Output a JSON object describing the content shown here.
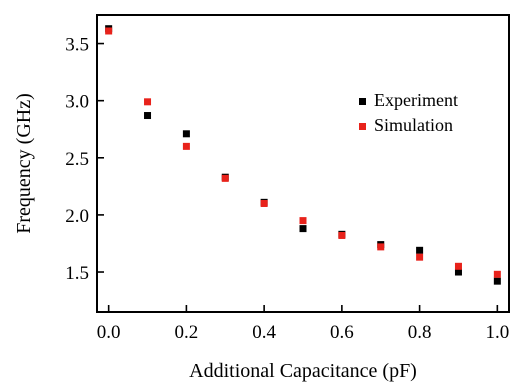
{
  "chart_data": {
    "type": "scatter",
    "xlabel": "Additional Capacitance (pF)",
    "ylabel": "Frequency (GHz)",
    "xlim": [
      -0.03,
      1.03
    ],
    "ylim": [
      1.15,
      3.75
    ],
    "xticks": [
      0.0,
      0.2,
      0.4,
      0.6,
      0.8,
      1.0
    ],
    "xtick_labels": [
      "0.0",
      "0.2",
      "0.4",
      "0.6",
      "0.8",
      "1.0"
    ],
    "yticks": [
      1.5,
      2.0,
      2.5,
      3.0,
      3.5
    ],
    "ytick_labels": [
      "1.5",
      "2.0",
      "2.5",
      "3.0",
      "3.5"
    ],
    "grid": false,
    "legend_position": "right",
    "series": [
      {
        "name": "Experiment",
        "color": "#000000",
        "x": [
          0.0,
          0.1,
          0.2,
          0.3,
          0.4,
          0.5,
          0.6,
          0.7,
          0.8,
          0.9,
          1.0
        ],
        "y": [
          3.63,
          2.87,
          2.71,
          2.33,
          2.11,
          1.88,
          1.83,
          1.74,
          1.69,
          1.5,
          1.42
        ]
      },
      {
        "name": "Simulation",
        "color": "#e8221b",
        "x": [
          0.0,
          0.1,
          0.2,
          0.3,
          0.4,
          0.5,
          0.6,
          0.7,
          0.8,
          0.9,
          1.0
        ],
        "y": [
          3.61,
          2.99,
          2.6,
          2.32,
          2.1,
          1.95,
          1.82,
          1.72,
          1.63,
          1.55,
          1.48
        ]
      }
    ]
  }
}
